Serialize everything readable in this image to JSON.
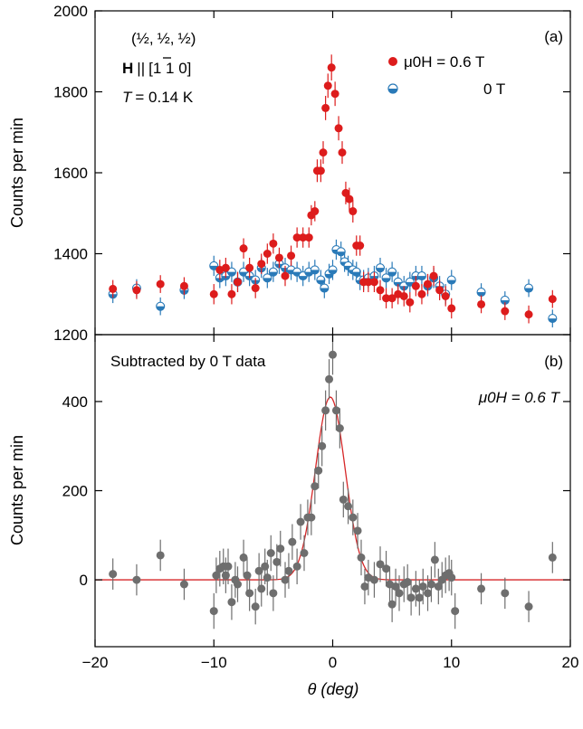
{
  "chart_data": [
    {
      "panel_id": "top",
      "type": "scatter",
      "panel_tag": "(a)",
      "ylabel": "Counts per min",
      "xlim": [
        -20,
        20
      ],
      "ylim": [
        1200,
        2000
      ],
      "yticks": [
        1200,
        1400,
        1600,
        1800,
        2000
      ],
      "info": {
        "q_frac": "½",
        "q_sep": ",",
        "q_open": "(",
        "q_close": ")",
        "h_bold": "H",
        "h_par": "||",
        "h_dir": "[1 1 0]",
        "h_bar_digit": "1",
        "t_sym": "T",
        "t_val": "= 0.14 K"
      },
      "legend_position": "top-right",
      "series": [
        {
          "name": "μ0H = 0.6 T",
          "color": "#dd1c1c",
          "marker": "filled-circle",
          "points": [
            [
              -18.5,
              1313,
              22
            ],
            [
              -16.5,
              1310,
              22
            ],
            [
              -14.5,
              1325,
              22
            ],
            [
              -12.5,
              1320,
              22
            ],
            [
              -10.0,
              1300,
              25
            ],
            [
              -9.5,
              1360,
              25
            ],
            [
              -9.0,
              1365,
              25
            ],
            [
              -8.5,
              1300,
              25
            ],
            [
              -8.0,
              1330,
              25
            ],
            [
              -7.5,
              1413,
              25
            ],
            [
              -7.0,
              1365,
              25
            ],
            [
              -6.5,
              1315,
              25
            ],
            [
              -6.0,
              1375,
              25
            ],
            [
              -5.5,
              1400,
              25
            ],
            [
              -5.0,
              1425,
              25
            ],
            [
              -4.5,
              1390,
              25
            ],
            [
              -4.0,
              1345,
              25
            ],
            [
              -3.5,
              1395,
              25
            ],
            [
              -3.0,
              1440,
              25
            ],
            [
              -2.5,
              1440,
              25
            ],
            [
              -2.0,
              1440,
              25
            ],
            [
              -1.8,
              1495,
              25
            ],
            [
              -1.5,
              1505,
              25
            ],
            [
              -1.3,
              1605,
              28
            ],
            [
              -1.0,
              1605,
              28
            ],
            [
              -0.8,
              1650,
              28
            ],
            [
              -0.6,
              1760,
              30
            ],
            [
              -0.4,
              1815,
              30
            ],
            [
              -0.1,
              1860,
              32
            ],
            [
              0.2,
              1795,
              30
            ],
            [
              0.5,
              1710,
              30
            ],
            [
              0.8,
              1650,
              28
            ],
            [
              1.1,
              1550,
              28
            ],
            [
              1.4,
              1535,
              28
            ],
            [
              1.7,
              1505,
              28
            ],
            [
              2.0,
              1420,
              25
            ],
            [
              2.3,
              1420,
              25
            ],
            [
              2.6,
              1330,
              25
            ],
            [
              3.0,
              1330,
              25
            ],
            [
              3.5,
              1330,
              25
            ],
            [
              4.0,
              1310,
              25
            ],
            [
              4.5,
              1290,
              25
            ],
            [
              5.0,
              1290,
              25
            ],
            [
              5.5,
              1300,
              25
            ],
            [
              6.0,
              1295,
              25
            ],
            [
              6.5,
              1280,
              25
            ],
            [
              7.0,
              1320,
              25
            ],
            [
              7.5,
              1300,
              25
            ],
            [
              8.0,
              1325,
              25
            ],
            [
              8.5,
              1345,
              25
            ],
            [
              9.0,
              1310,
              25
            ],
            [
              9.5,
              1295,
              25
            ],
            [
              10.0,
              1265,
              25
            ],
            [
              12.5,
              1275,
              22
            ],
            [
              14.5,
              1258,
              22
            ],
            [
              16.5,
              1250,
              22
            ],
            [
              18.5,
              1288,
              22
            ]
          ]
        },
        {
          "name": "0 T",
          "color": "#2a7ab8",
          "marker": "half-filled-circle",
          "points": [
            [
              -18.5,
              1300,
              22
            ],
            [
              -16.5,
              1315,
              22
            ],
            [
              -14.5,
              1270,
              22
            ],
            [
              -12.5,
              1310,
              22
            ],
            [
              -10.0,
              1370,
              25
            ],
            [
              -9.5,
              1340,
              25
            ],
            [
              -9.0,
              1345,
              25
            ],
            [
              -8.5,
              1355,
              25
            ],
            [
              -8.0,
              1330,
              25
            ],
            [
              -7.5,
              1355,
              25
            ],
            [
              -7.0,
              1345,
              25
            ],
            [
              -6.5,
              1335,
              25
            ],
            [
              -6.0,
              1365,
              25
            ],
            [
              -5.5,
              1340,
              25
            ],
            [
              -5.0,
              1355,
              25
            ],
            [
              -4.5,
              1375,
              25
            ],
            [
              -4.0,
              1365,
              25
            ],
            [
              -3.5,
              1360,
              25
            ],
            [
              -3.0,
              1355,
              25
            ],
            [
              -2.5,
              1345,
              25
            ],
            [
              -2.0,
              1355,
              25
            ],
            [
              -1.5,
              1360,
              25
            ],
            [
              -1.0,
              1335,
              25
            ],
            [
              -0.7,
              1315,
              25
            ],
            [
              -0.3,
              1350,
              25
            ],
            [
              0.0,
              1360,
              25
            ],
            [
              0.3,
              1410,
              25
            ],
            [
              0.7,
              1405,
              25
            ],
            [
              1.0,
              1380,
              25
            ],
            [
              1.3,
              1370,
              25
            ],
            [
              1.7,
              1360,
              25
            ],
            [
              2.0,
              1355,
              25
            ],
            [
              2.3,
              1335,
              25
            ],
            [
              2.6,
              1335,
              25
            ],
            [
              3.0,
              1340,
              25
            ],
            [
              3.5,
              1345,
              25
            ],
            [
              4.0,
              1365,
              25
            ],
            [
              4.5,
              1340,
              25
            ],
            [
              5.0,
              1355,
              25
            ],
            [
              5.5,
              1330,
              25
            ],
            [
              6.0,
              1320,
              25
            ],
            [
              6.5,
              1330,
              25
            ],
            [
              7.0,
              1345,
              25
            ],
            [
              7.5,
              1345,
              25
            ],
            [
              8.0,
              1320,
              25
            ],
            [
              8.5,
              1340,
              25
            ],
            [
              9.0,
              1320,
              25
            ],
            [
              9.5,
              1300,
              25
            ],
            [
              10.0,
              1335,
              25
            ],
            [
              12.5,
              1305,
              22
            ],
            [
              14.5,
              1285,
              22
            ],
            [
              16.5,
              1315,
              22
            ],
            [
              18.5,
              1240,
              22
            ]
          ]
        }
      ]
    },
    {
      "panel_id": "bottom",
      "type": "scatter",
      "panel_tag": "(b)",
      "annotation": "Subtracted by 0 T data",
      "field_label": "μ0H = 0.6 T",
      "xlabel": "θ (deg)",
      "ylabel": "Counts per min",
      "xlim": [
        -20,
        20
      ],
      "ylim": [
        -150,
        550
      ],
      "xticks": [
        -20,
        -10,
        0,
        10,
        20
      ],
      "xtick_labels": [
        "−20",
        "−10",
        "0",
        "10",
        "20"
      ],
      "yticks": [
        0,
        200,
        400
      ],
      "series": [
        {
          "name": "difference",
          "color": "#6e6e6e",
          "marker": "filled-circle",
          "points": [
            [
              -18.5,
              13,
              35
            ],
            [
              -16.5,
              0,
              35
            ],
            [
              -14.5,
              55,
              35
            ],
            [
              -12.5,
              -10,
              35
            ],
            [
              -10.0,
              -70,
              40
            ],
            [
              -9.8,
              10,
              40
            ],
            [
              -9.5,
              25,
              40
            ],
            [
              -9.2,
              30,
              40
            ],
            [
              -9.0,
              10,
              40
            ],
            [
              -8.8,
              30,
              40
            ],
            [
              -8.5,
              -50,
              40
            ],
            [
              -8.2,
              0,
              40
            ],
            [
              -8.0,
              -10,
              40
            ],
            [
              -7.5,
              50,
              40
            ],
            [
              -7.2,
              10,
              40
            ],
            [
              -7.0,
              -30,
              40
            ],
            [
              -6.5,
              -60,
              40
            ],
            [
              -6.2,
              20,
              40
            ],
            [
              -6.0,
              -20,
              40
            ],
            [
              -5.7,
              30,
              40
            ],
            [
              -5.5,
              5,
              40
            ],
            [
              -5.2,
              60,
              40
            ],
            [
              -5.0,
              -30,
              40
            ],
            [
              -4.7,
              40,
              40
            ],
            [
              -4.4,
              70,
              40
            ],
            [
              -4.0,
              0,
              40
            ],
            [
              -3.7,
              20,
              40
            ],
            [
              -3.4,
              85,
              40
            ],
            [
              -3.0,
              30,
              40
            ],
            [
              -2.7,
              130,
              40
            ],
            [
              -2.4,
              60,
              40
            ],
            [
              -2.1,
              140,
              40
            ],
            [
              -1.8,
              140,
              40
            ],
            [
              -1.5,
              210,
              40
            ],
            [
              -1.2,
              245,
              40
            ],
            [
              -0.9,
              300,
              45
            ],
            [
              -0.6,
              380,
              45
            ],
            [
              -0.3,
              450,
              45
            ],
            [
              0.0,
              505,
              45
            ],
            [
              0.3,
              380,
              45
            ],
            [
              0.6,
              340,
              45
            ],
            [
              0.9,
              180,
              40
            ],
            [
              1.3,
              165,
              40
            ],
            [
              1.7,
              140,
              40
            ],
            [
              2.1,
              110,
              40
            ],
            [
              2.4,
              50,
              40
            ],
            [
              2.7,
              -15,
              40
            ],
            [
              3.0,
              5,
              40
            ],
            [
              3.5,
              0,
              40
            ],
            [
              4.0,
              35,
              40
            ],
            [
              4.5,
              25,
              40
            ],
            [
              4.8,
              -10,
              40
            ],
            [
              5.0,
              -55,
              40
            ],
            [
              5.3,
              -15,
              40
            ],
            [
              5.6,
              -30,
              40
            ],
            [
              6.0,
              -10,
              40
            ],
            [
              6.3,
              -5,
              40
            ],
            [
              6.6,
              -40,
              40
            ],
            [
              7.0,
              -20,
              40
            ],
            [
              7.3,
              -40,
              40
            ],
            [
              7.6,
              -15,
              40
            ],
            [
              8.0,
              -30,
              40
            ],
            [
              8.3,
              -10,
              40
            ],
            [
              8.6,
              45,
              40
            ],
            [
              8.9,
              -15,
              40
            ],
            [
              9.2,
              0,
              40
            ],
            [
              9.5,
              10,
              40
            ],
            [
              9.8,
              15,
              40
            ],
            [
              10.0,
              5,
              40
            ],
            [
              10.3,
              -70,
              40
            ],
            [
              12.5,
              -20,
              35
            ],
            [
              14.5,
              -30,
              35
            ],
            [
              16.5,
              -60,
              35
            ],
            [
              18.5,
              50,
              35
            ]
          ]
        },
        {
          "name": "fit",
          "color": "#d62728",
          "type": "line",
          "fit_function": "gaussian",
          "amplitude": 410,
          "center": -0.2,
          "sigma": 1.25,
          "baseline": 0
        }
      ]
    }
  ]
}
